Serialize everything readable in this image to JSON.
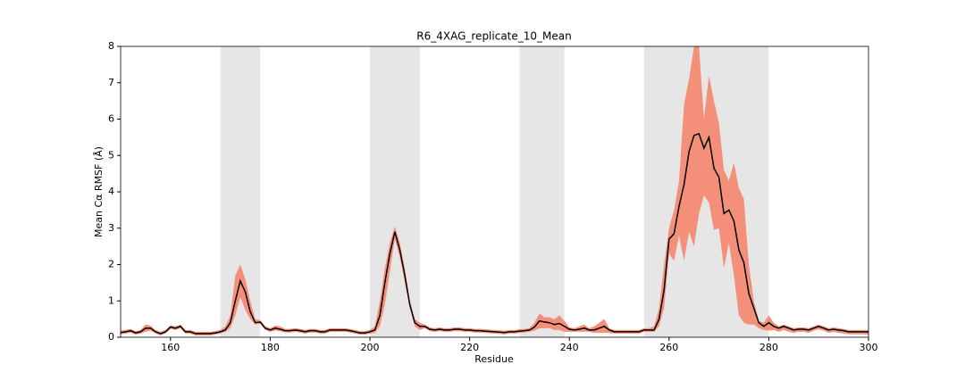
{
  "chart_data": {
    "type": "line_band",
    "title": "R6_4XAG_replicate_10_Mean",
    "xlabel": "Residue",
    "ylabel": "Mean Cα RMSF (Å)",
    "xlim": [
      150,
      300
    ],
    "ylim": [
      0,
      8
    ],
    "xticks": [
      160,
      180,
      200,
      220,
      240,
      260,
      280,
      300
    ],
    "yticks": [
      0,
      1,
      2,
      3,
      4,
      5,
      6,
      7,
      8
    ],
    "shaded_regions": [
      [
        170,
        178
      ],
      [
        200,
        210
      ],
      [
        230,
        239
      ],
      [
        255,
        280
      ]
    ],
    "region_color": "#e6e6e6",
    "x": [
      150,
      151,
      152,
      153,
      154,
      155,
      156,
      157,
      158,
      159,
      160,
      161,
      162,
      163,
      164,
      165,
      166,
      167,
      168,
      169,
      170,
      171,
      172,
      173,
      174,
      175,
      176,
      177,
      178,
      179,
      180,
      181,
      182,
      183,
      184,
      185,
      186,
      187,
      188,
      189,
      190,
      191,
      192,
      193,
      194,
      195,
      196,
      197,
      198,
      199,
      200,
      201,
      202,
      203,
      204,
      205,
      206,
      207,
      208,
      209,
      210,
      211,
      212,
      213,
      214,
      215,
      216,
      217,
      218,
      219,
      220,
      221,
      222,
      223,
      224,
      225,
      226,
      227,
      228,
      229,
      230,
      231,
      232,
      233,
      234,
      235,
      236,
      237,
      238,
      239,
      240,
      241,
      242,
      243,
      244,
      245,
      246,
      247,
      248,
      249,
      250,
      251,
      252,
      253,
      254,
      255,
      256,
      257,
      258,
      259,
      260,
      261,
      262,
      263,
      264,
      265,
      266,
      267,
      268,
      269,
      270,
      271,
      272,
      273,
      274,
      275,
      276,
      277,
      278,
      279,
      280,
      281,
      282,
      283,
      284,
      285,
      286,
      287,
      288,
      289,
      290,
      291,
      292,
      293,
      294,
      295,
      296,
      297,
      298,
      299,
      300
    ],
    "series": [
      {
        "color": "#000000",
        "band_color": "#f4907a",
        "values": [
          0.13,
          0.15,
          0.18,
          0.12,
          0.15,
          0.25,
          0.25,
          0.15,
          0.1,
          0.15,
          0.28,
          0.25,
          0.3,
          0.15,
          0.15,
          0.1,
          0.1,
          0.1,
          0.1,
          0.12,
          0.15,
          0.2,
          0.4,
          1.0,
          1.55,
          1.25,
          0.7,
          0.4,
          0.42,
          0.25,
          0.2,
          0.25,
          0.22,
          0.18,
          0.18,
          0.2,
          0.18,
          0.15,
          0.18,
          0.18,
          0.15,
          0.15,
          0.2,
          0.2,
          0.2,
          0.2,
          0.18,
          0.15,
          0.12,
          0.12,
          0.15,
          0.2,
          0.6,
          1.5,
          2.3,
          2.9,
          2.4,
          1.7,
          0.9,
          0.4,
          0.3,
          0.3,
          0.22,
          0.2,
          0.22,
          0.2,
          0.2,
          0.22,
          0.22,
          0.2,
          0.2,
          0.18,
          0.18,
          0.17,
          0.16,
          0.15,
          0.14,
          0.13,
          0.15,
          0.15,
          0.17,
          0.18,
          0.2,
          0.28,
          0.45,
          0.42,
          0.4,
          0.35,
          0.38,
          0.3,
          0.22,
          0.2,
          0.22,
          0.25,
          0.2,
          0.2,
          0.25,
          0.3,
          0.2,
          0.15,
          0.15,
          0.15,
          0.15,
          0.15,
          0.15,
          0.2,
          0.2,
          0.2,
          0.5,
          1.3,
          2.7,
          2.85,
          3.6,
          4.2,
          5.1,
          5.55,
          5.6,
          5.2,
          5.5,
          4.65,
          4.4,
          3.4,
          3.5,
          3.2,
          2.4,
          2.05,
          1.2,
          0.8,
          0.4,
          0.3,
          0.4,
          0.3,
          0.25,
          0.3,
          0.25,
          0.2,
          0.22,
          0.22,
          0.2,
          0.25,
          0.3,
          0.25,
          0.2,
          0.22,
          0.2,
          0.18,
          0.15,
          0.15,
          0.15,
          0.15,
          0.15
        ],
        "upper": [
          0.18,
          0.2,
          0.23,
          0.17,
          0.2,
          0.35,
          0.32,
          0.2,
          0.15,
          0.2,
          0.33,
          0.3,
          0.35,
          0.2,
          0.2,
          0.15,
          0.15,
          0.15,
          0.15,
          0.17,
          0.2,
          0.3,
          0.6,
          1.7,
          2.0,
          1.6,
          1.0,
          0.5,
          0.47,
          0.3,
          0.25,
          0.32,
          0.3,
          0.23,
          0.23,
          0.25,
          0.23,
          0.2,
          0.23,
          0.23,
          0.2,
          0.2,
          0.25,
          0.25,
          0.25,
          0.25,
          0.23,
          0.2,
          0.17,
          0.17,
          0.2,
          0.3,
          1.0,
          1.9,
          2.6,
          3.05,
          2.6,
          1.9,
          1.0,
          0.5,
          0.4,
          0.35,
          0.27,
          0.25,
          0.27,
          0.25,
          0.25,
          0.27,
          0.27,
          0.25,
          0.25,
          0.23,
          0.23,
          0.22,
          0.21,
          0.2,
          0.19,
          0.18,
          0.2,
          0.2,
          0.22,
          0.23,
          0.25,
          0.4,
          0.65,
          0.55,
          0.55,
          0.5,
          0.6,
          0.45,
          0.27,
          0.25,
          0.3,
          0.35,
          0.25,
          0.3,
          0.4,
          0.5,
          0.25,
          0.2,
          0.2,
          0.2,
          0.2,
          0.2,
          0.2,
          0.25,
          0.25,
          0.3,
          0.8,
          2.0,
          3.0,
          3.5,
          4.3,
          6.4,
          7.1,
          8.0,
          8.0,
          6.0,
          7.2,
          6.5,
          5.9,
          4.6,
          4.3,
          4.8,
          4.1,
          3.8,
          2.0,
          1.0,
          0.45,
          0.4,
          0.6,
          0.4,
          0.3,
          0.35,
          0.3,
          0.25,
          0.27,
          0.27,
          0.25,
          0.3,
          0.35,
          0.3,
          0.25,
          0.27,
          0.25,
          0.23,
          0.2,
          0.2,
          0.2,
          0.2,
          0.2
        ],
        "lower": [
          0.08,
          0.1,
          0.13,
          0.07,
          0.1,
          0.15,
          0.18,
          0.1,
          0.05,
          0.1,
          0.23,
          0.2,
          0.25,
          0.1,
          0.1,
          0.05,
          0.05,
          0.05,
          0.05,
          0.07,
          0.1,
          0.15,
          0.25,
          0.6,
          1.1,
          0.75,
          0.5,
          0.35,
          0.37,
          0.2,
          0.15,
          0.18,
          0.17,
          0.13,
          0.13,
          0.15,
          0.13,
          0.1,
          0.13,
          0.13,
          0.1,
          0.1,
          0.15,
          0.15,
          0.15,
          0.15,
          0.13,
          0.1,
          0.07,
          0.07,
          0.1,
          0.12,
          0.3,
          0.9,
          1.8,
          2.7,
          2.2,
          1.5,
          0.8,
          0.3,
          0.2,
          0.25,
          0.17,
          0.15,
          0.17,
          0.15,
          0.15,
          0.17,
          0.17,
          0.15,
          0.15,
          0.13,
          0.13,
          0.12,
          0.11,
          0.1,
          0.09,
          0.08,
          0.1,
          0.1,
          0.12,
          0.13,
          0.15,
          0.18,
          0.25,
          0.25,
          0.25,
          0.2,
          0.2,
          0.15,
          0.15,
          0.15,
          0.15,
          0.15,
          0.15,
          0.12,
          0.12,
          0.12,
          0.12,
          0.1,
          0.1,
          0.1,
          0.1,
          0.1,
          0.1,
          0.15,
          0.15,
          0.15,
          0.3,
          0.8,
          2.3,
          2.1,
          2.8,
          2.1,
          2.9,
          2.5,
          3.4,
          3.9,
          3.7,
          2.95,
          3.0,
          1.9,
          2.6,
          1.7,
          0.6,
          0.4,
          0.35,
          0.35,
          0.25,
          0.2,
          0.18,
          0.2,
          0.15,
          0.2,
          0.15,
          0.12,
          0.15,
          0.15,
          0.12,
          0.18,
          0.22,
          0.18,
          0.12,
          0.15,
          0.12,
          0.1,
          0.08,
          0.08,
          0.08,
          0.08,
          0.08
        ]
      }
    ]
  }
}
